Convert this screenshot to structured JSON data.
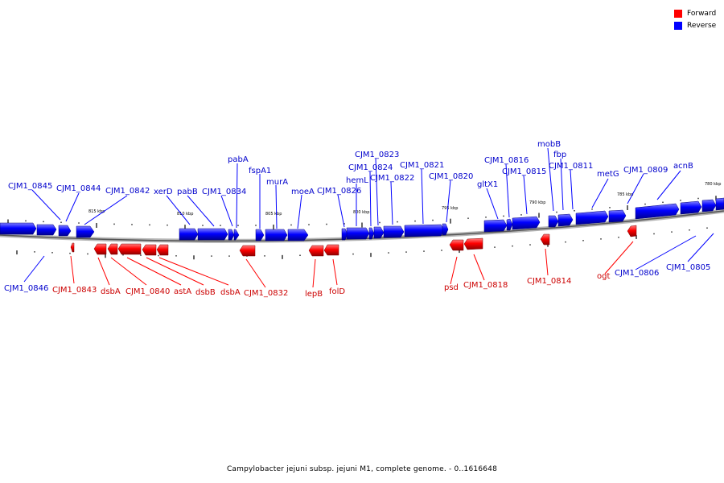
{
  "title": "Campylobacter jejuni subsp. jejuni M1, complete genome. - 0..1616648",
  "legend": {
    "forward_label": "Forward",
    "reverse_label": "Reverse",
    "forward_color": "#ff0000",
    "reverse_color": "#0000ff"
  },
  "scale_labels": [
    "815 kbp",
    "810 kbp",
    "805 kbp",
    "800 kbp",
    "795 kbp",
    "790 kbp",
    "785 kbp",
    "780 kbp"
  ],
  "genes_reverse": [
    "CJM1_0845",
    "CJM1_0844",
    "CJM1_0842",
    "xerD",
    "pabB",
    "CJM1_0834",
    "pabA",
    "fspA1",
    "murA",
    "moeA",
    "CJM1_0826",
    "hemL",
    "CJM1_0824",
    "CJM1_0823",
    "CJM1_0822",
    "CJM1_0821",
    "CJM1_0820",
    "gltX1",
    "CJM1_0816",
    "CJM1_0815",
    "mobB",
    "fbp",
    "CJM1_0811",
    "metG",
    "CJM1_0809",
    "acnB",
    "CJM1_0846",
    "CJM1_0806",
    "CJM1_0805"
  ],
  "genes_forward": [
    "CJM1_0843",
    "dsbA",
    "CJM1_0840",
    "astA",
    "dsbB",
    "dsbA",
    "CJM1_0832",
    "lepB",
    "folD",
    "psd",
    "CJM1_0818",
    "CJM1_0814",
    "ogt"
  ]
}
